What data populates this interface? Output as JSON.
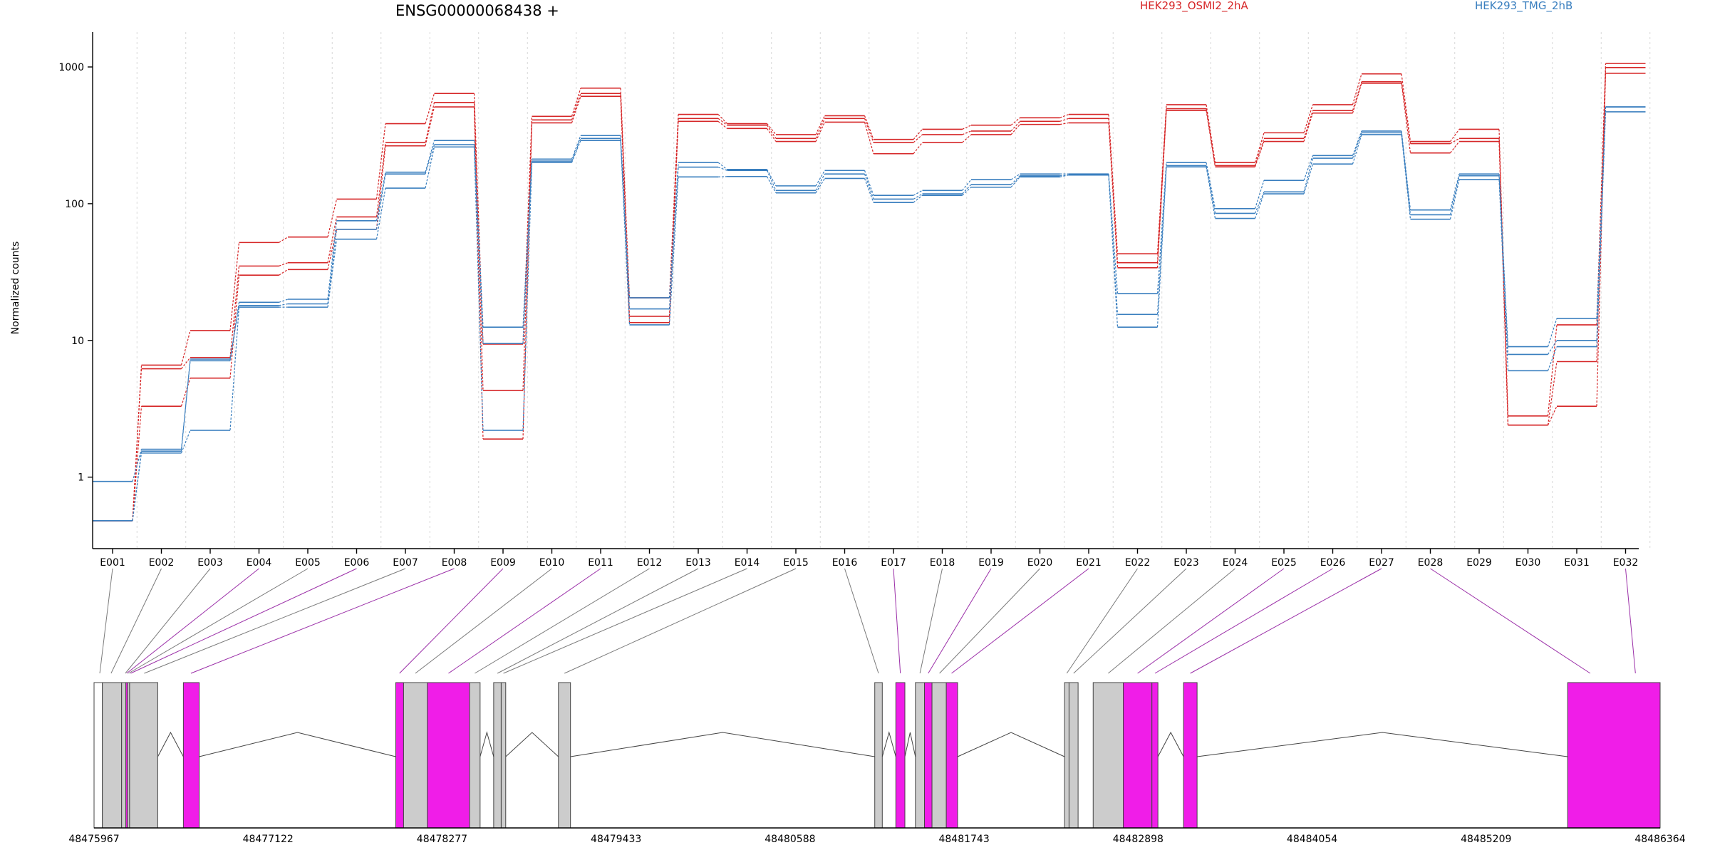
{
  "chart_data": {
    "type": "line",
    "title": "ENSG00000068438 +",
    "ylabel": "Normalized counts",
    "yscale": "log",
    "ylim": [
      0.3,
      1800
    ],
    "yticks": [
      1,
      10,
      100,
      1000
    ],
    "ytick_labels": [
      "1",
      "10",
      "100",
      "1000"
    ],
    "grid": true,
    "legend": [
      {
        "name": "HEK293_OSMI2_2hA",
        "color": "#d62728"
      },
      {
        "name": "HEK293_TMG_2hB",
        "color": "#3a7fbf"
      }
    ],
    "categories": [
      "E001",
      "E002",
      "E003",
      "E004",
      "E005",
      "E006",
      "E007",
      "E008",
      "E009",
      "E010",
      "E011",
      "E012",
      "E013",
      "E014",
      "E015",
      "E016",
      "E017",
      "E018",
      "E019",
      "E020",
      "E021",
      "E022",
      "E023",
      "E024",
      "E025",
      "E026",
      "E027",
      "E028",
      "E029",
      "E030",
      "E031",
      "E032"
    ],
    "series": [
      {
        "group": "HEK293_OSMI2_2hA",
        "color": "#d62728",
        "values": [
          0.48,
          6.6,
          11.8,
          52,
          57,
          108,
          385,
          640,
          9.4,
          435,
          700,
          20.5,
          450,
          385,
          320,
          440,
          295,
          350,
          375,
          425,
          450,
          43,
          530,
          200,
          330,
          530,
          890,
          285,
          350,
          2.8,
          13,
          1060
        ]
      },
      {
        "group": "HEK293_OSMI2_2hA",
        "color": "#d62728",
        "values": [
          0.48,
          6.2,
          7.5,
          35,
          37,
          80,
          280,
          550,
          4.3,
          410,
          640,
          15,
          420,
          375,
          300,
          420,
          280,
          320,
          340,
          400,
          420,
          37,
          495,
          190,
          300,
          480,
          780,
          275,
          300,
          2.4,
          7,
          990
        ]
      },
      {
        "group": "HEK293_OSMI2_2hA",
        "color": "#d62728",
        "values": [
          0.48,
          3.3,
          5.3,
          30,
          33,
          65,
          265,
          510,
          1.9,
          390,
          610,
          13.5,
          400,
          355,
          285,
          395,
          232,
          280,
          320,
          380,
          390,
          34,
          480,
          186,
          285,
          460,
          760,
          235,
          285,
          2.4,
          3.3,
          900
        ]
      },
      {
        "group": "HEK293_TMG_2hB",
        "color": "#3a7fbf",
        "values": [
          0.93,
          1.6,
          7.1,
          19,
          20,
          75,
          170,
          290,
          12.5,
          212,
          315,
          20.5,
          200,
          178,
          135,
          175,
          115,
          125,
          150,
          165,
          165,
          22,
          200,
          92,
          148,
          225,
          340,
          90,
          165,
          9,
          14.5,
          510
        ]
      },
      {
        "group": "HEK293_TMG_2hB",
        "color": "#3a7fbf",
        "values": [
          0.48,
          1.55,
          7.3,
          18,
          18.5,
          65,
          165,
          270,
          9.5,
          205,
          300,
          17,
          185,
          175,
          125,
          165,
          108,
          118,
          138,
          160,
          162,
          15.5,
          190,
          85,
          122,
          215,
          330,
          83,
          160,
          7.9,
          10,
          510
        ]
      },
      {
        "group": "HEK293_TMG_2hB",
        "color": "#3a7fbf",
        "values": [
          0.48,
          1.5,
          2.2,
          17.5,
          17.5,
          55,
          130,
          260,
          2.2,
          200,
          290,
          13,
          157,
          158,
          120,
          153,
          102,
          115,
          132,
          157,
          162,
          12.5,
          186,
          78,
          118,
          195,
          320,
          77,
          150,
          6,
          9,
          470
        ]
      }
    ],
    "gene_model": {
      "coordinate_ticks": [
        "48475967",
        "48477122",
        "48478277",
        "48479433",
        "48480588",
        "48481743",
        "48482898",
        "48484054",
        "48485209",
        "48486364"
      ],
      "coordinate_range": [
        48475967,
        48486364
      ],
      "colors": {
        "constitutive": "#cccccc",
        "differential": "#f01de8",
        "outline": "#444444",
        "intron": "#444444"
      },
      "exon_blocks": [
        {
          "start": 48475967,
          "end": 48476022,
          "color": "#ffffff"
        },
        {
          "start": 48476022,
          "end": 48476150,
          "color": "#cccccc"
        },
        {
          "start": 48476150,
          "end": 48476178,
          "color": "#cccccc"
        },
        {
          "start": 48476178,
          "end": 48476190,
          "color": "#f01de8"
        },
        {
          "start": 48476190,
          "end": 48476203,
          "color": "#cccccc"
        },
        {
          "start": 48476203,
          "end": 48476390,
          "color": "#cccccc"
        },
        {
          "start": 48476560,
          "end": 48476665,
          "color": "#f01de8"
        },
        {
          "start": 48477970,
          "end": 48478022,
          "color": "#f01de8"
        },
        {
          "start": 48478022,
          "end": 48478180,
          "color": "#cccccc"
        },
        {
          "start": 48478180,
          "end": 48478460,
          "color": "#f01de8"
        },
        {
          "start": 48478460,
          "end": 48478530,
          "color": "#cccccc"
        },
        {
          "start": 48478620,
          "end": 48478670,
          "color": "#cccccc"
        },
        {
          "start": 48478670,
          "end": 48478700,
          "color": "#cccccc"
        },
        {
          "start": 48479050,
          "end": 48479130,
          "color": "#cccccc"
        },
        {
          "start": 48481150,
          "end": 48481200,
          "color": "#cccccc"
        },
        {
          "start": 48481290,
          "end": 48481350,
          "color": "#f01de8"
        },
        {
          "start": 48481420,
          "end": 48481480,
          "color": "#cccccc"
        },
        {
          "start": 48481480,
          "end": 48481530,
          "color": "#f01de8"
        },
        {
          "start": 48481530,
          "end": 48481625,
          "color": "#cccccc"
        },
        {
          "start": 48481625,
          "end": 48481700,
          "color": "#f01de8"
        },
        {
          "start": 48482410,
          "end": 48482440,
          "color": "#cccccc"
        },
        {
          "start": 48482440,
          "end": 48482500,
          "color": "#cccccc"
        },
        {
          "start": 48482600,
          "end": 48482800,
          "color": "#cccccc"
        },
        {
          "start": 48482800,
          "end": 48482990,
          "color": "#f01de8"
        },
        {
          "start": 48482990,
          "end": 48483030,
          "color": "#f01de8"
        },
        {
          "start": 48483200,
          "end": 48483290,
          "color": "#f01de8"
        },
        {
          "start": 48485750,
          "end": 48486364,
          "color": "#f01de8"
        }
      ],
      "introns": [
        [
          48476390,
          48476560
        ],
        [
          48476665,
          48477970
        ],
        [
          48478530,
          48478620
        ],
        [
          48478700,
          48479050
        ],
        [
          48479130,
          48481150
        ],
        [
          48481200,
          48481290
        ],
        [
          48481350,
          48481420
        ],
        [
          48481700,
          48482410
        ],
        [
          48483030,
          48483200
        ],
        [
          48483290,
          48485750
        ]
      ],
      "exon_links": [
        {
          "exon": "E001",
          "pos": 48476005,
          "color": "#7a7a7a"
        },
        {
          "exon": "E002",
          "pos": 48476080,
          "color": "#7a7a7a"
        },
        {
          "exon": "E003",
          "pos": 48476175,
          "color": "#7a7a7a"
        },
        {
          "exon": "E004",
          "pos": 48476184,
          "color": "#9b2fa8"
        },
        {
          "exon": "E005",
          "pos": 48476196,
          "color": "#7a7a7a"
        },
        {
          "exon": "E006",
          "pos": 48476210,
          "color": "#9b2fa8"
        },
        {
          "exon": "E007",
          "pos": 48476300,
          "color": "#7a7a7a"
        },
        {
          "exon": "E008",
          "pos": 48476610,
          "color": "#9b2fa8"
        },
        {
          "exon": "E009",
          "pos": 48477995,
          "color": "#9b2fa8"
        },
        {
          "exon": "E010",
          "pos": 48478100,
          "color": "#7a7a7a"
        },
        {
          "exon": "E011",
          "pos": 48478320,
          "color": "#9b2fa8"
        },
        {
          "exon": "E012",
          "pos": 48478495,
          "color": "#7a7a7a"
        },
        {
          "exon": "E013",
          "pos": 48478645,
          "color": "#7a7a7a"
        },
        {
          "exon": "E014",
          "pos": 48478685,
          "color": "#7a7a7a"
        },
        {
          "exon": "E015",
          "pos": 48479090,
          "color": "#7a7a7a"
        },
        {
          "exon": "E016",
          "pos": 48481175,
          "color": "#7a7a7a"
        },
        {
          "exon": "E017",
          "pos": 48481320,
          "color": "#9b2fa8"
        },
        {
          "exon": "E018",
          "pos": 48481450,
          "color": "#7a7a7a"
        },
        {
          "exon": "E019",
          "pos": 48481505,
          "color": "#9b2fa8"
        },
        {
          "exon": "E020",
          "pos": 48481580,
          "color": "#7a7a7a"
        },
        {
          "exon": "E021",
          "pos": 48481660,
          "color": "#9b2fa8"
        },
        {
          "exon": "E022",
          "pos": 48482425,
          "color": "#7a7a7a"
        },
        {
          "exon": "E023",
          "pos": 48482470,
          "color": "#7a7a7a"
        },
        {
          "exon": "E024",
          "pos": 48482700,
          "color": "#7a7a7a"
        },
        {
          "exon": "E025",
          "pos": 48482895,
          "color": "#9b2fa8"
        },
        {
          "exon": "E026",
          "pos": 48483010,
          "color": "#9b2fa8"
        },
        {
          "exon": "E027",
          "pos": 48483245,
          "color": "#9b2fa8"
        },
        {
          "exon": "E028",
          "pos": 48485900,
          "color": "#9b2fa8"
        }
      ]
    }
  }
}
